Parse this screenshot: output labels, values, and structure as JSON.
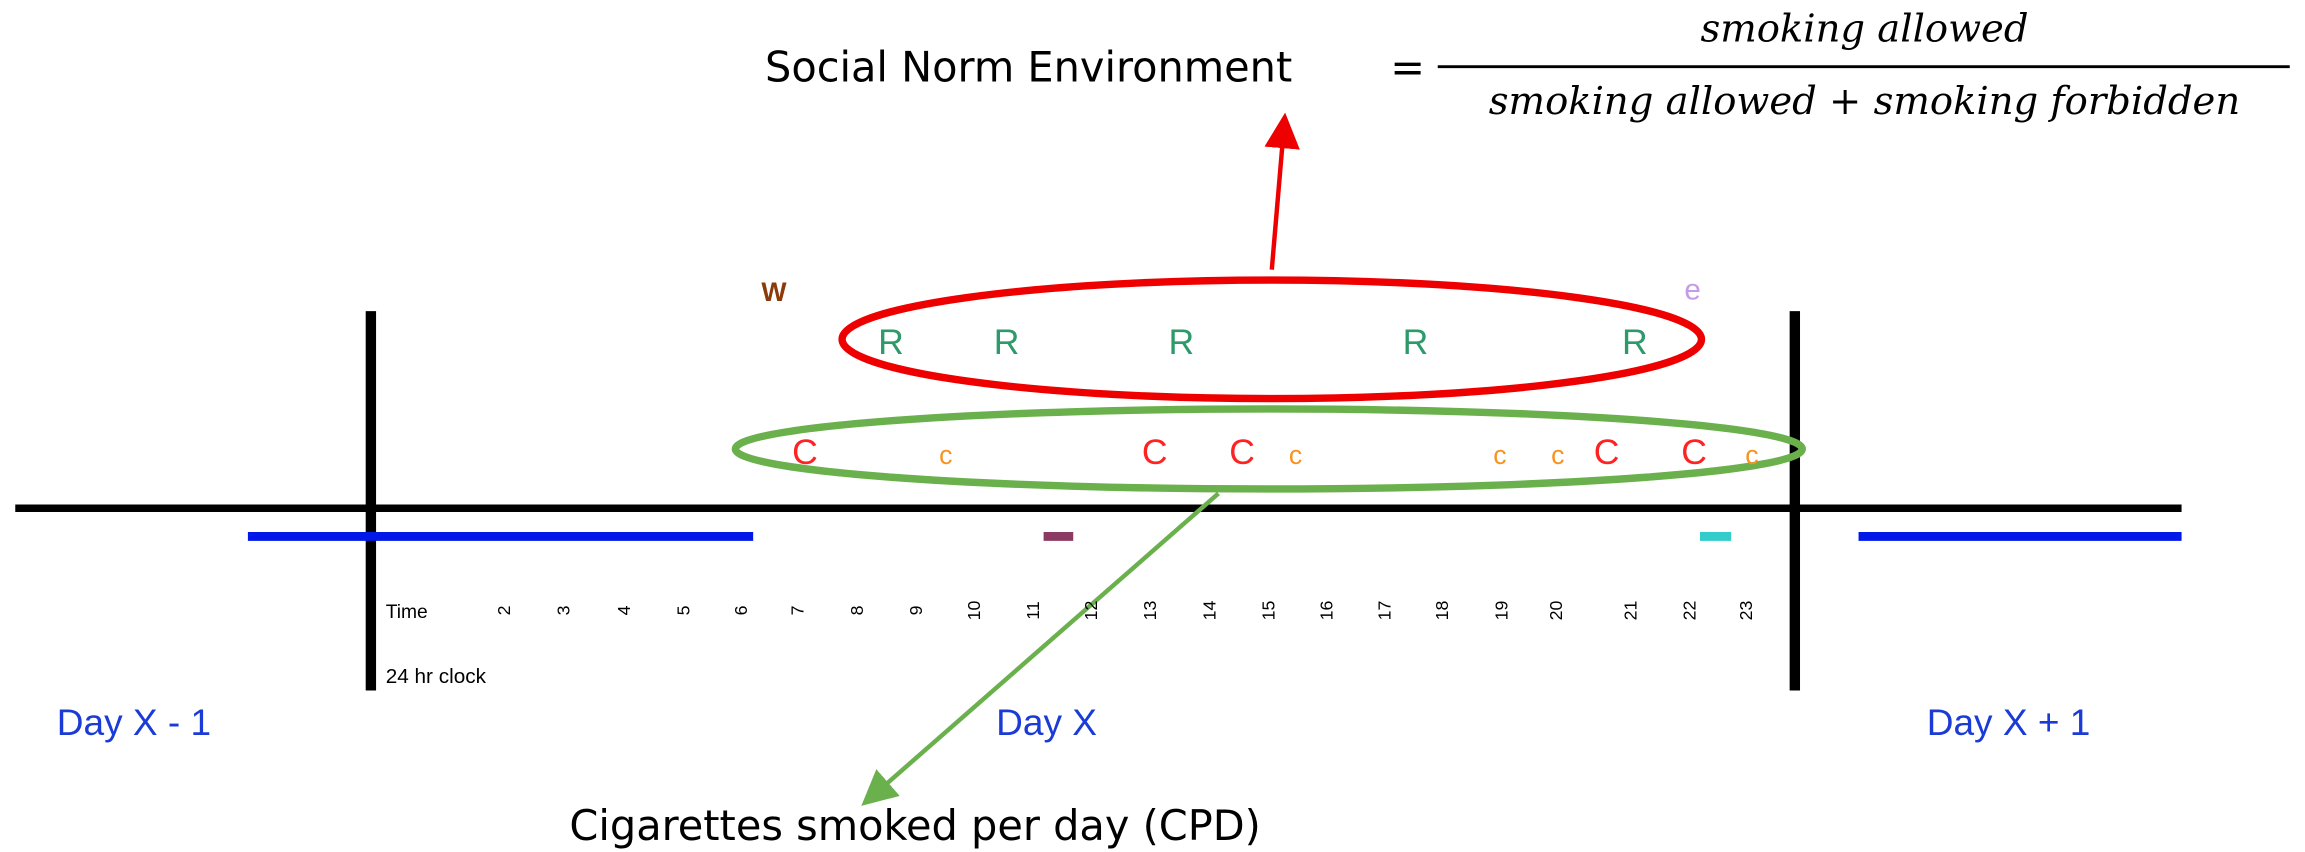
{
  "formula": {
    "label": "Social Norm Environment",
    "equals": "=",
    "numerator": "smoking allowed",
    "denominator": "smoking allowed + smoking forbidden"
  },
  "markers": {
    "wake": "W",
    "end": "e",
    "rooms": [
      "R",
      "R",
      "R",
      "R",
      "R"
    ],
    "cigarettes": [
      "C",
      "c",
      "C",
      "C",
      "c",
      "c",
      "c",
      "C",
      "C",
      "c"
    ]
  },
  "time": {
    "label": "Time",
    "hours": [
      "2",
      "3",
      "4",
      "5",
      "6",
      "7",
      "8",
      "9",
      "10",
      "11",
      "12",
      "13",
      "14",
      "15",
      "16",
      "17",
      "18",
      "19",
      "20",
      "21",
      "22",
      "23"
    ],
    "clock": "24 hr clock"
  },
  "days": [
    "Day X - 1",
    "Day X",
    "Day X + 1"
  ],
  "caption": "Cigarettes smoked per day (CPD)"
}
